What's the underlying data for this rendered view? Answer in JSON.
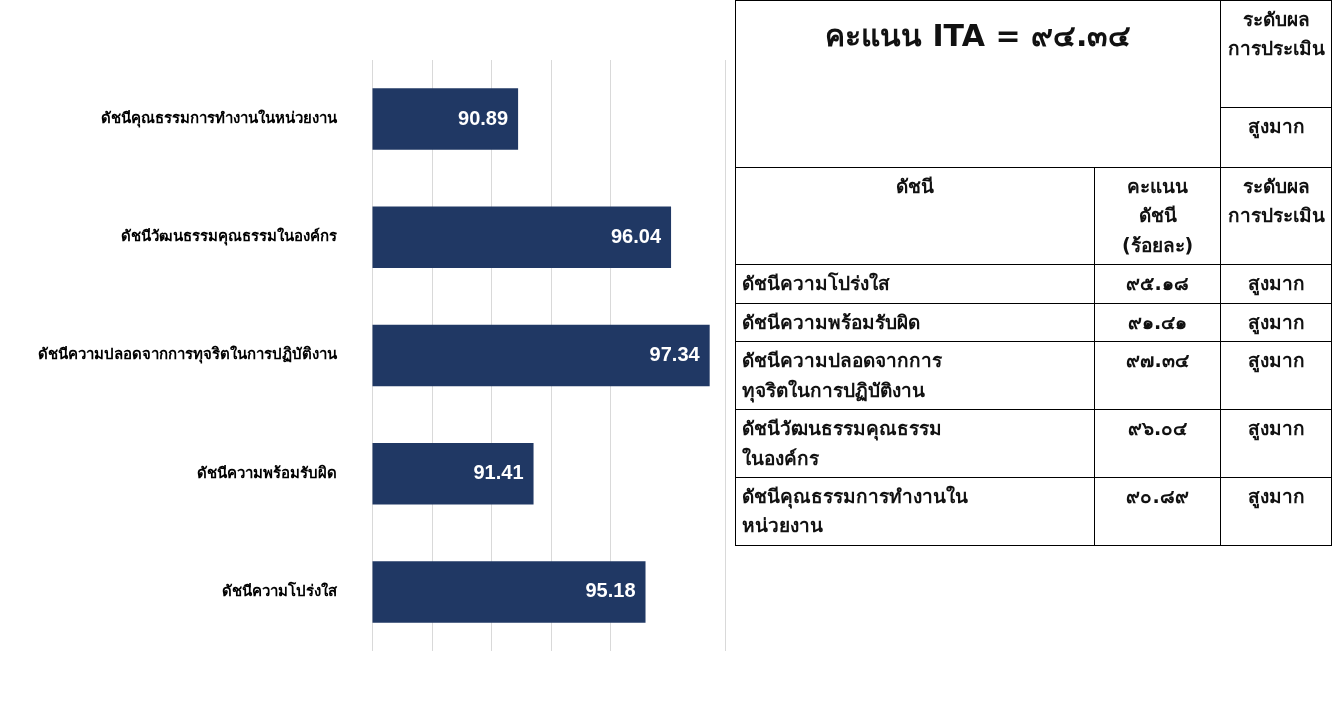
{
  "chart_data": [
    {
      "type": "bar",
      "orientation": "horizontal",
      "categories": [
        "ดัชนีคุณธรรมการทำงานในหน่วยงาน",
        "ดัชนีวัฒนธรรมคุณธรรมในองค์กร",
        "ดัชนีความปลอดจากการทุจริตในการปฏิบัติงาน",
        "ดัชนีความพร้อมรับผิด",
        "ดัชนีความโปร่งใส"
      ],
      "values": [
        90.89,
        96.04,
        97.34,
        91.41,
        95.18
      ],
      "color": "#203864",
      "data_labels": true,
      "grid": "x",
      "tick_labels": "y"
    },
    {
      "type": "other",
      "title": "คะแนน ITA = ๙๔.๓๔",
      "annotations": [
        "ระดับผล\nการประเมิน",
        "สูงมาก",
        "ดัชนี",
        "คะแนน\nดัชนี\n(ร้อยละ)",
        "ระดับผล\nการประเมิน",
        "ดัชนีความโปร่งใส",
        "๙๕.๑๘",
        "สูงมาก",
        "ดัชนีความพร้อมรับผิด",
        "๙๑.๔๑",
        "สูงมาก",
        "ดัชนีความปลอดจากการ\nทุจริตในการปฏิบัติงาน",
        "๙๗.๓๔",
        "สูงมาก",
        "ดัชนีวัฒนธรรมคุณธรรม\nในองค์กร",
        "๙๖.๐๔",
        "สูงมาก",
        "ดัชนีคุณธรรมการทำงานใน\nหน่วยงาน",
        "๙๐.๘๙",
        "สูงมาก"
      ]
    }
  ]
}
